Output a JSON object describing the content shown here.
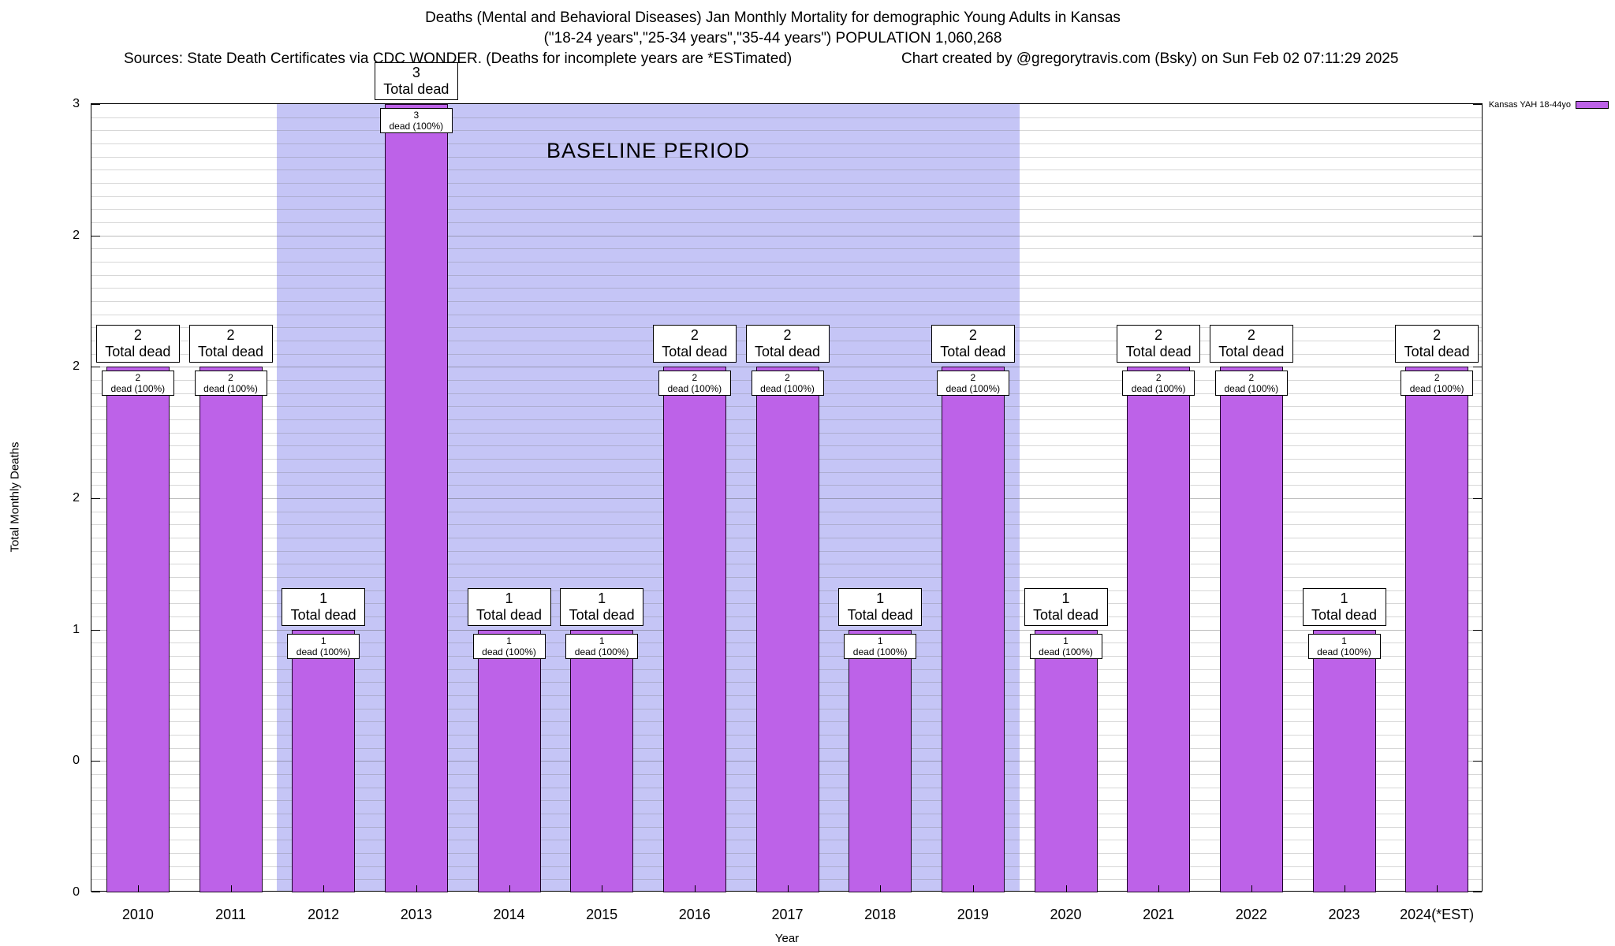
{
  "header": {
    "title_line1": "Deaths (Mental and Behavioral Diseases) Jan Monthly Mortality for demographic Young Adults in Kansas",
    "title_line2": "(\"18-24 years\",\"25-34 years\",\"35-44 years\") POPULATION 1,060,268",
    "sources": "Sources: State Death Certificates via CDC WONDER. (Deaths for incomplete years are *ESTimated)",
    "credit": "Chart created by @gregorytravis.com (Bsky) on Sun Feb 02 07:11:29 2025"
  },
  "chart_data": {
    "type": "bar",
    "title": "Deaths (Mental and Behavioral Diseases) Jan Monthly Mortality for demographic Young Adults in Kansas",
    "subtitle": "(\"18-24 years\",\"25-34 years\",\"35-44 years\") POPULATION 1,060,268",
    "xlabel": "Year",
    "ylabel": "Total Monthly Deaths",
    "ylim": [
      0,
      3
    ],
    "grid": true,
    "legend_position": "top-right",
    "legend": {
      "label": "Kansas YAH 18-44yo"
    },
    "bar_color": "#bd62e8",
    "categories": [
      "2010",
      "2011",
      "2012",
      "2013",
      "2014",
      "2015",
      "2016",
      "2017",
      "2018",
      "2019",
      "2020",
      "2021",
      "2022",
      "2023",
      "2024(*EST)"
    ],
    "values": [
      2,
      2,
      1,
      3,
      1,
      1,
      2,
      2,
      1,
      2,
      1,
      2,
      2,
      1,
      2
    ],
    "bars": [
      {
        "category": "2010",
        "value": 2,
        "top_box": [
          "2",
          "Total dead"
        ],
        "inner_box": [
          "2",
          "dead (100%)"
        ]
      },
      {
        "category": "2011",
        "value": 2,
        "top_box": [
          "2",
          "Total dead"
        ],
        "inner_box": [
          "2",
          "dead (100%)"
        ]
      },
      {
        "category": "2012",
        "value": 1,
        "top_box": [
          "1",
          "Total dead"
        ],
        "inner_box": [
          "1",
          "dead (100%)"
        ]
      },
      {
        "category": "2013",
        "value": 3,
        "top_box": [
          "3",
          "Total dead"
        ],
        "inner_box": [
          "3",
          "dead (100%)"
        ]
      },
      {
        "category": "2014",
        "value": 1,
        "top_box": [
          "1",
          "Total dead"
        ],
        "inner_box": [
          "1",
          "dead (100%)"
        ]
      },
      {
        "category": "2015",
        "value": 1,
        "top_box": [
          "1",
          "Total dead"
        ],
        "inner_box": [
          "1",
          "dead (100%)"
        ]
      },
      {
        "category": "2016",
        "value": 2,
        "top_box": [
          "2",
          "Total dead"
        ],
        "inner_box": [
          "2",
          "dead (100%)"
        ]
      },
      {
        "category": "2017",
        "value": 2,
        "top_box": [
          "2",
          "Total dead"
        ],
        "inner_box": [
          "2",
          "dead (100%)"
        ]
      },
      {
        "category": "2018",
        "value": 1,
        "top_box": [
          "1",
          "Total dead"
        ],
        "inner_box": [
          "1",
          "dead (100%)"
        ]
      },
      {
        "category": "2019",
        "value": 2,
        "top_box": [
          "2",
          "Total dead"
        ],
        "inner_box": [
          "2",
          "dead (100%)"
        ]
      },
      {
        "category": "2020",
        "value": 1,
        "top_box": [
          "1",
          "Total dead"
        ],
        "inner_box": [
          "1",
          "dead (100%)"
        ]
      },
      {
        "category": "2021",
        "value": 2,
        "top_box": [
          "2",
          "Total dead"
        ],
        "inner_box": [
          "2",
          "dead (100%)"
        ]
      },
      {
        "category": "2022",
        "value": 2,
        "top_box": [
          "2",
          "Total dead"
        ],
        "inner_box": [
          "2",
          "dead (100%)"
        ]
      },
      {
        "category": "2023",
        "value": 1,
        "top_box": [
          "1",
          "Total dead"
        ],
        "inner_box": [
          "1",
          "dead (100%)"
        ]
      },
      {
        "category": "2024(*EST)",
        "value": 2,
        "top_box": [
          "2",
          "Total dead"
        ],
        "inner_box": [
          "2",
          "dead (100%)"
        ]
      }
    ],
    "y_ticks": [
      {
        "v": 0,
        "label": "0"
      },
      {
        "v": 0.5,
        "label": "0"
      },
      {
        "v": 1,
        "label": "1"
      },
      {
        "v": 1.5,
        "label": "2"
      },
      {
        "v": 2,
        "label": "2"
      },
      {
        "v": 2.5,
        "label": "2"
      },
      {
        "v": 3,
        "label": "3"
      }
    ],
    "baseline_region": {
      "label": "BASELINE PERIOD",
      "from_category": "2012",
      "to_category": "2019",
      "color": "#c5c5f6"
    }
  }
}
